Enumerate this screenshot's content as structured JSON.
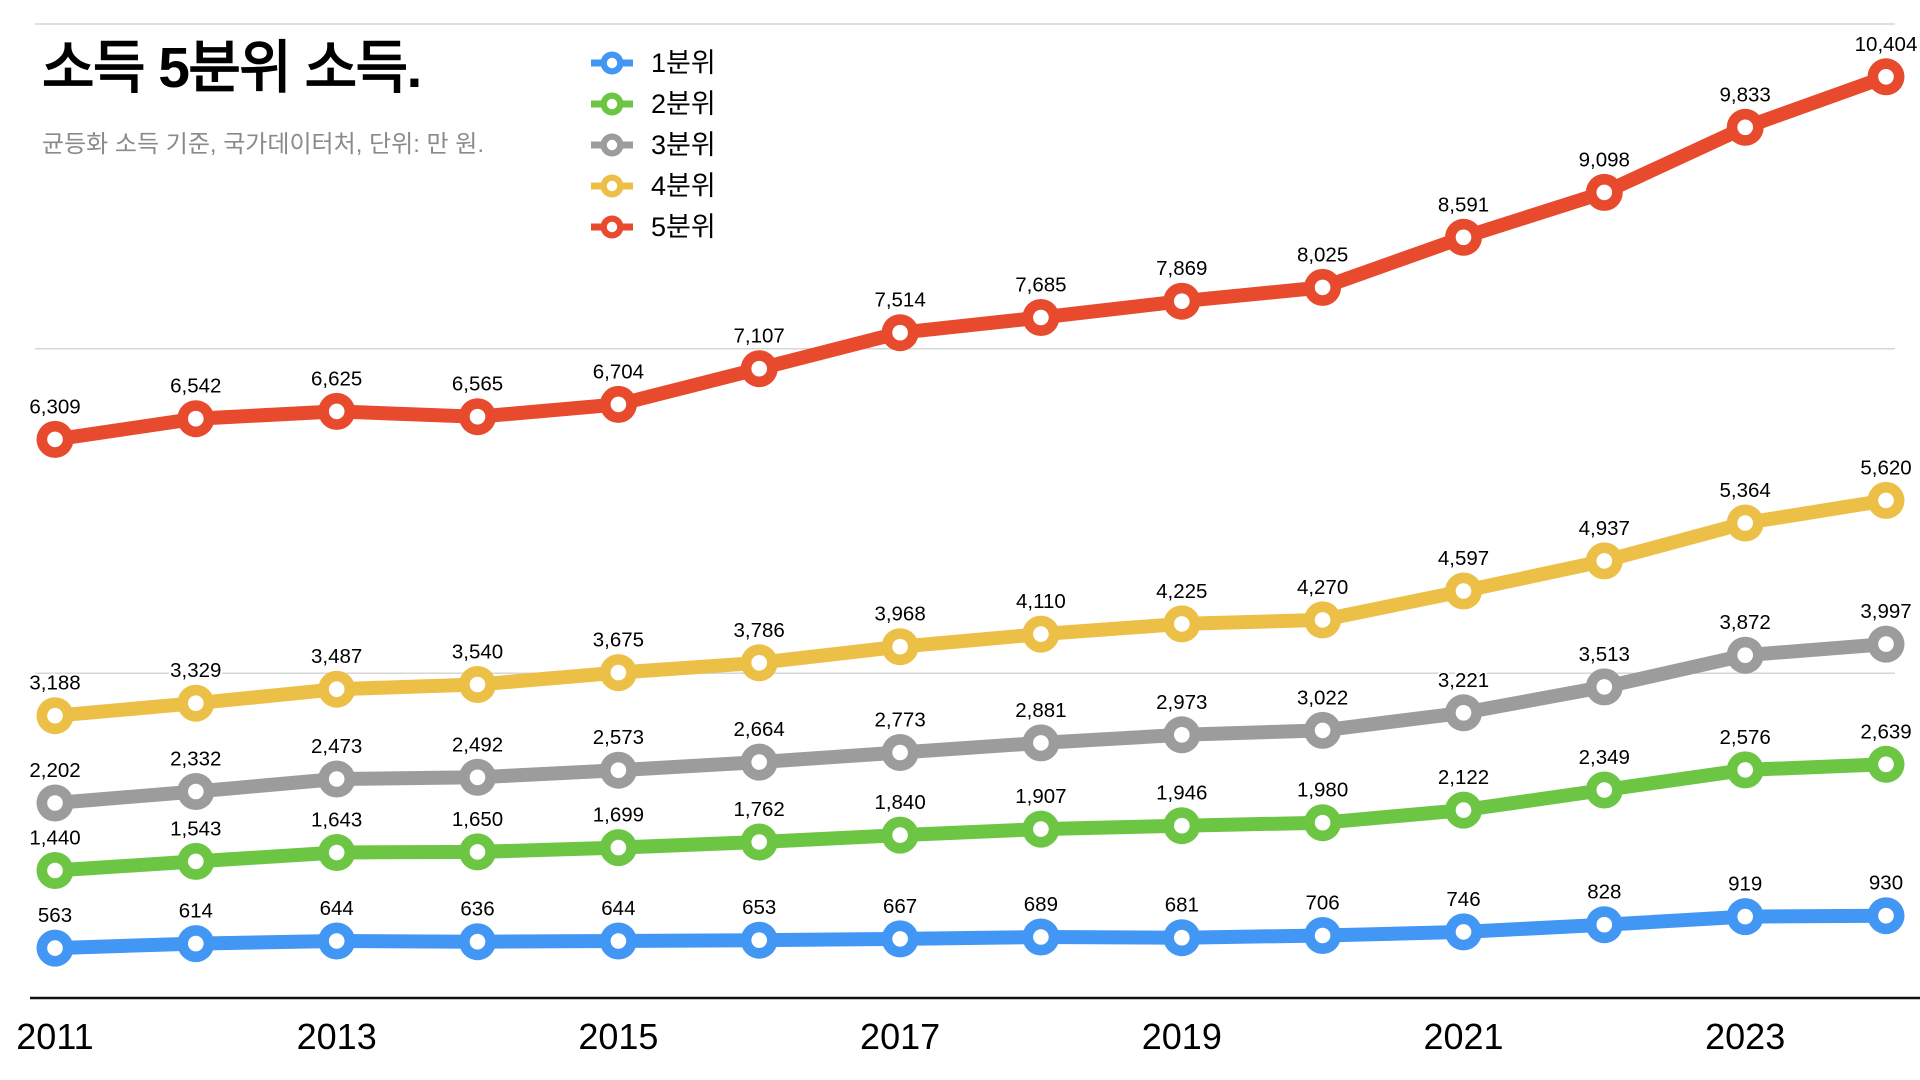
{
  "page": {
    "background": "#ffffff"
  },
  "header": {
    "title": "소득 5분위 소득.",
    "subtitle": "균등화 소득 기준, 국가데이터처, 단위: 만 원."
  },
  "colors": {
    "grid": "#d6d6d6",
    "axis": "#111111",
    "label_text": "#000000",
    "subtitle_text": "#8a8a8a"
  },
  "chart_data": {
    "type": "line",
    "title": "소득 5분위 소득.",
    "subtitle": "균등화 소득 기준, 국가데이터처, 단위: 만 원.",
    "x": [
      2011,
      2012,
      2013,
      2014,
      2015,
      2016,
      2017,
      2018,
      2019,
      2020,
      2021,
      2022,
      2023,
      2024
    ],
    "x_tick_labels": [
      "2011",
      "2013",
      "2015",
      "2017",
      "2019",
      "2021",
      "2023"
    ],
    "ylim": [
      0,
      11000
    ],
    "grid": "horizontal",
    "grid_values": [
      0,
      3666.67,
      7333.33,
      11000
    ],
    "legend_position": "top-center",
    "data_labels": "every point, thousands comma separator, above marker",
    "marker_style": "ring (colored donut with white hole) on thick line",
    "series": [
      {
        "name": "1분위",
        "color": "#4397f4",
        "values": [
          563,
          614,
          644,
          636,
          644,
          653,
          667,
          689,
          681,
          706,
          746,
          828,
          919,
          930
        ]
      },
      {
        "name": "2분위",
        "color": "#6cc644",
        "values": [
          1440,
          1543,
          1643,
          1650,
          1699,
          1762,
          1840,
          1907,
          1946,
          1980,
          2122,
          2349,
          2576,
          2639
        ]
      },
      {
        "name": "3분위",
        "color": "#9c9c9c",
        "values": [
          2202,
          2332,
          2473,
          2492,
          2573,
          2664,
          2773,
          2881,
          2973,
          3022,
          3221,
          3513,
          3872,
          3997
        ]
      },
      {
        "name": "4분위",
        "color": "#ecbf46",
        "values": [
          3188,
          3329,
          3487,
          3540,
          3675,
          3786,
          3968,
          4110,
          4225,
          4270,
          4597,
          4937,
          5364,
          5620
        ]
      },
      {
        "name": "5분위",
        "color": "#e74a2c",
        "values": [
          6309,
          6542,
          6625,
          6565,
          6704,
          7107,
          7514,
          7685,
          7869,
          8025,
          8591,
          9098,
          9833,
          10404
        ]
      }
    ]
  }
}
